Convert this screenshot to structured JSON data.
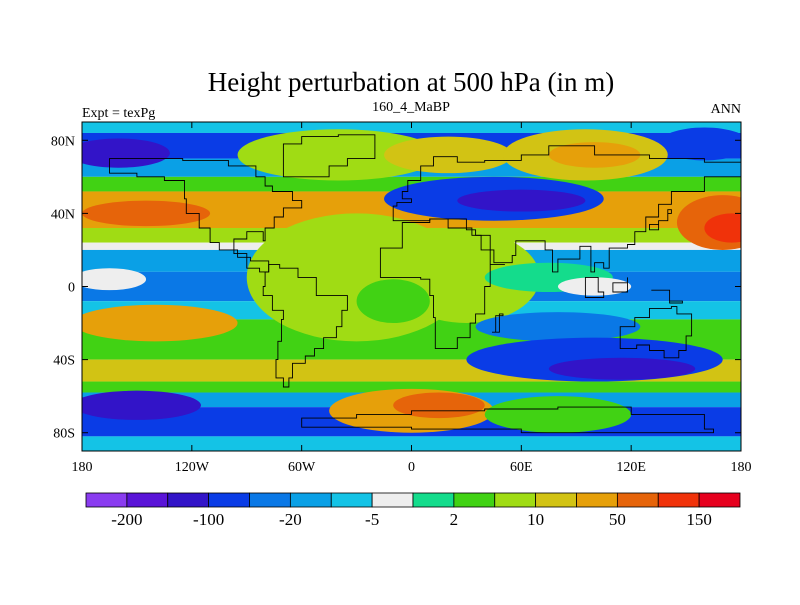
{
  "chart_data": {
    "type": "heatmap",
    "title": "Height perturbation at 500 hPa (in m)",
    "subtitle_left": "Expt = texPg",
    "subtitle_center": "160_4_MaBP",
    "subtitle_right": "ANN",
    "x_range": [
      -180,
      180
    ],
    "y_range": [
      -90,
      90
    ],
    "x_ticks": [
      {
        "value": -180,
        "label": "180"
      },
      {
        "value": -120,
        "label": "120W"
      },
      {
        "value": -60,
        "label": "60W"
      },
      {
        "value": 0,
        "label": "0"
      },
      {
        "value": 60,
        "label": "60E"
      },
      {
        "value": 120,
        "label": "120E"
      },
      {
        "value": 180,
        "label": "180"
      }
    ],
    "y_ticks": [
      {
        "value": 80,
        "label": "80N"
      },
      {
        "value": 40,
        "label": "40N"
      },
      {
        "value": 0,
        "label": "0"
      },
      {
        "value": -40,
        "label": "40S"
      },
      {
        "value": -80,
        "label": "80S"
      }
    ],
    "colorbar": {
      "colors": [
        "#8a3cf0",
        "#5a14d8",
        "#3214c8",
        "#0a3ce6",
        "#0a78e6",
        "#0aa0e6",
        "#14c3e6",
        "#eeeeee",
        "#14dc8c",
        "#41d214",
        "#a0dc14",
        "#d2c314",
        "#e6a00a",
        "#e6640a",
        "#f0320a",
        "#e6001e"
      ],
      "labels": [
        {
          "boundary": 1,
          "text": "-200"
        },
        {
          "boundary": 3,
          "text": "-100"
        },
        {
          "boundary": 5,
          "text": "-20"
        },
        {
          "boundary": 7,
          "text": "-5"
        },
        {
          "boundary": 9,
          "text": "2"
        },
        {
          "boundary": 11,
          "text": "10"
        },
        {
          "boundary": 13,
          "text": "50"
        },
        {
          "boundary": 15,
          "text": "150"
        }
      ]
    },
    "field_bands": [
      {
        "lat_from": 90,
        "lat_to": 84,
        "color_index": 6
      },
      {
        "lat_from": 84,
        "lat_to": 70,
        "color_index": 3
      },
      {
        "lat_from": 70,
        "lat_to": 60,
        "color_index": 5
      },
      {
        "lat_from": 60,
        "lat_to": 52,
        "color_index": 9
      },
      {
        "lat_from": 52,
        "lat_to": 32,
        "color_index": 12
      },
      {
        "lat_from": 32,
        "lat_to": 24,
        "color_index": 10
      },
      {
        "lat_from": 24,
        "lat_to": 20,
        "color_index": 7
      },
      {
        "lat_from": 20,
        "lat_to": 8,
        "color_index": 5
      },
      {
        "lat_from": 8,
        "lat_to": -8,
        "color_index": 4
      },
      {
        "lat_from": -8,
        "lat_to": -18,
        "color_index": 6
      },
      {
        "lat_from": -18,
        "lat_to": -40,
        "color_index": 9
      },
      {
        "lat_from": -40,
        "lat_to": -52,
        "color_index": 11
      },
      {
        "lat_from": -52,
        "lat_to": -58,
        "color_index": 9
      },
      {
        "lat_from": -58,
        "lat_to": -66,
        "color_index": 5
      },
      {
        "lat_from": -66,
        "lat_to": -82,
        "color_index": 3
      },
      {
        "lat_from": -82,
        "lat_to": -90,
        "color_index": 6
      }
    ],
    "field_blobs": [
      {
        "lon": -160,
        "lat": 73,
        "rx": 28,
        "ry": 8,
        "color_index": 2
      },
      {
        "lon": 45,
        "lat": 48,
        "rx": 60,
        "ry": 12,
        "color_index": 3
      },
      {
        "lon": 60,
        "lat": 47,
        "rx": 35,
        "ry": 6,
        "color_index": 2
      },
      {
        "lon": 160,
        "lat": 78,
        "rx": 25,
        "ry": 9,
        "color_index": 3
      },
      {
        "lon": -40,
        "lat": 72,
        "rx": 55,
        "ry": 14,
        "color_index": 10
      },
      {
        "lon": 20,
        "lat": 72,
        "rx": 35,
        "ry": 10,
        "color_index": 11
      },
      {
        "lon": 95,
        "lat": 72,
        "rx": 45,
        "ry": 14,
        "color_index": 11
      },
      {
        "lon": 100,
        "lat": 72,
        "rx": 25,
        "ry": 7,
        "color_index": 12
      },
      {
        "lon": 170,
        "lat": 35,
        "rx": 25,
        "ry": 15,
        "color_index": 13
      },
      {
        "lon": 175,
        "lat": 32,
        "rx": 15,
        "ry": 8,
        "color_index": 14
      },
      {
        "lon": -145,
        "lat": 40,
        "rx": 35,
        "ry": 7,
        "color_index": 13
      },
      {
        "lon": -30,
        "lat": 5,
        "rx": 60,
        "ry": 35,
        "color_index": 10
      },
      {
        "lon": 30,
        "lat": 5,
        "rx": 40,
        "ry": 25,
        "color_index": 10
      },
      {
        "lon": 75,
        "lat": 5,
        "rx": 35,
        "ry": 8,
        "color_index": 8
      },
      {
        "lon": -165,
        "lat": 4,
        "rx": 20,
        "ry": 6,
        "color_index": 7
      },
      {
        "lon": 100,
        "lat": 0,
        "rx": 20,
        "ry": 5,
        "color_index": 7
      },
      {
        "lon": 80,
        "lat": -22,
        "rx": 45,
        "ry": 8,
        "color_index": 4
      },
      {
        "lon": 100,
        "lat": -40,
        "rx": 70,
        "ry": 12,
        "color_index": 3
      },
      {
        "lon": 115,
        "lat": -45,
        "rx": 40,
        "ry": 6,
        "color_index": 2
      },
      {
        "lon": -140,
        "lat": -20,
        "rx": 45,
        "ry": 10,
        "color_index": 12
      },
      {
        "lon": 0,
        "lat": -68,
        "rx": 45,
        "ry": 12,
        "color_index": 12
      },
      {
        "lon": 15,
        "lat": -65,
        "rx": 25,
        "ry": 7,
        "color_index": 13
      },
      {
        "lon": -150,
        "lat": -65,
        "rx": 35,
        "ry": 8,
        "color_index": 2
      },
      {
        "lon": 80,
        "lat": -70,
        "rx": 40,
        "ry": 10,
        "color_index": 9
      },
      {
        "lon": -10,
        "lat": -8,
        "rx": 20,
        "ry": 12,
        "color_index": 9
      }
    ],
    "coastlines": [
      [
        [
          -165,
          65
        ],
        [
          -145,
          70
        ],
        [
          -125,
          70
        ],
        [
          -100,
          69
        ],
        [
          -85,
          66
        ],
        [
          -80,
          60
        ],
        [
          -76,
          55
        ],
        [
          -65,
          52
        ],
        [
          -60,
          47
        ],
        [
          -70,
          43
        ],
        [
          -75,
          38
        ],
        [
          -80,
          32
        ],
        [
          -81,
          25
        ],
        [
          -90,
          30
        ],
        [
          -97,
          26
        ],
        [
          -97,
          20
        ],
        [
          -90,
          18
        ],
        [
          -83,
          10
        ],
        [
          -78,
          8
        ],
        [
          -88,
          14
        ],
        [
          -95,
          16
        ],
        [
          -105,
          20
        ],
        [
          -110,
          24
        ],
        [
          -116,
          32
        ],
        [
          -123,
          40
        ],
        [
          -124,
          48
        ],
        [
          -135,
          58
        ],
        [
          -150,
          60
        ],
        [
          -165,
          62
        ],
        [
          -165,
          65
        ]
      ],
      [
        [
          -78,
          8
        ],
        [
          -72,
          12
        ],
        [
          -62,
          10
        ],
        [
          -52,
          5
        ],
        [
          -35,
          -5
        ],
        [
          -38,
          -13
        ],
        [
          -41,
          -22
        ],
        [
          -48,
          -28
        ],
        [
          -53,
          -34
        ],
        [
          -58,
          -38
        ],
        [
          -65,
          -42
        ],
        [
          -67,
          -50
        ],
        [
          -70,
          -55
        ],
        [
          -74,
          -50
        ],
        [
          -73,
          -40
        ],
        [
          -71,
          -30
        ],
        [
          -70,
          -18
        ],
        [
          -76,
          -13
        ],
        [
          -81,
          -5
        ],
        [
          -80,
          0
        ],
        [
          -78,
          8
        ]
      ],
      [
        [
          -55,
          60
        ],
        [
          -45,
          60
        ],
        [
          -35,
          66
        ],
        [
          -20,
          70
        ],
        [
          -20,
          80
        ],
        [
          -40,
          83
        ],
        [
          -60,
          82
        ],
        [
          -70,
          78
        ],
        [
          -55,
          60
        ]
      ],
      [
        [
          -10,
          36
        ],
        [
          -8,
          44
        ],
        [
          0,
          46
        ],
        [
          -5,
          48
        ],
        [
          -2,
          52
        ],
        [
          5,
          58
        ],
        [
          12,
          66
        ],
        [
          25,
          71
        ],
        [
          40,
          68
        ],
        [
          60,
          69
        ],
        [
          75,
          72
        ],
        [
          100,
          77
        ],
        [
          130,
          72
        ],
        [
          160,
          70
        ],
        [
          180,
          68
        ],
        [
          180,
          62
        ],
        [
          160,
          60
        ],
        [
          142,
          52
        ],
        [
          135,
          45
        ],
        [
          128,
          38
        ],
        [
          122,
          30
        ],
        [
          118,
          23
        ],
        [
          108,
          21
        ],
        [
          105,
          10
        ],
        [
          100,
          13
        ],
        [
          98,
          8
        ],
        [
          92,
          22
        ],
        [
          80,
          15
        ],
        [
          77,
          8
        ],
        [
          73,
          20
        ],
        [
          67,
          25
        ],
        [
          57,
          25
        ],
        [
          55,
          17
        ],
        [
          45,
          13
        ],
        [
          38,
          20
        ],
        [
          35,
          28
        ],
        [
          30,
          31
        ],
        [
          20,
          37
        ],
        [
          10,
          37
        ],
        [
          -10,
          36
        ]
      ],
      [
        [
          -17,
          21
        ],
        [
          -17,
          15
        ],
        [
          -10,
          5
        ],
        [
          5,
          5
        ],
        [
          10,
          4
        ],
        [
          12,
          -5
        ],
        [
          13,
          -17
        ],
        [
          18,
          -34
        ],
        [
          25,
          -34
        ],
        [
          32,
          -28
        ],
        [
          35,
          -20
        ],
        [
          40,
          -15
        ],
        [
          40,
          -5
        ],
        [
          43,
          0
        ],
        [
          51,
          12
        ],
        [
          43,
          12
        ],
        [
          33,
          28
        ],
        [
          20,
          32
        ],
        [
          10,
          37
        ],
        [
          -5,
          35
        ],
        [
          -17,
          21
        ]
      ],
      [
        [
          44,
          -25
        ],
        [
          48,
          -25
        ],
        [
          50,
          -15
        ],
        [
          46,
          -16
        ],
        [
          44,
          -25
        ]
      ],
      [
        [
          114,
          -22
        ],
        [
          114,
          -34
        ],
        [
          123,
          -34
        ],
        [
          130,
          -32
        ],
        [
          138,
          -35
        ],
        [
          146,
          -39
        ],
        [
          150,
          -35
        ],
        [
          153,
          -27
        ],
        [
          145,
          -15
        ],
        [
          142,
          -11
        ],
        [
          135,
          -12
        ],
        [
          130,
          -12
        ],
        [
          122,
          -17
        ],
        [
          114,
          -22
        ]
      ],
      [
        [
          130,
          31
        ],
        [
          135,
          34
        ],
        [
          140,
          36
        ],
        [
          142,
          40
        ],
        [
          140,
          42
        ],
        [
          135,
          36
        ],
        [
          130,
          31
        ]
      ],
      [
        [
          95,
          5
        ],
        [
          105,
          -6
        ],
        [
          102,
          -3
        ],
        [
          95,
          5
        ]
      ],
      [
        [
          110,
          -2
        ],
        [
          118,
          -3
        ],
        [
          118,
          5
        ],
        [
          110,
          2
        ],
        [
          110,
          -2
        ]
      ],
      [
        [
          131,
          -2
        ],
        [
          141,
          -2
        ],
        [
          148,
          -8
        ],
        [
          141,
          -9
        ],
        [
          131,
          -2
        ]
      ],
      [
        [
          -30,
          -72
        ],
        [
          0,
          -70
        ],
        [
          40,
          -68
        ],
        [
          80,
          -67
        ],
        [
          120,
          -66
        ],
        [
          160,
          -70
        ],
        [
          165,
          -78
        ],
        [
          120,
          -80
        ],
        [
          60,
          -80
        ],
        [
          0,
          -78
        ],
        [
          -60,
          -77
        ],
        [
          -60,
          -75
        ],
        [
          -30,
          -72
        ]
      ]
    ]
  }
}
